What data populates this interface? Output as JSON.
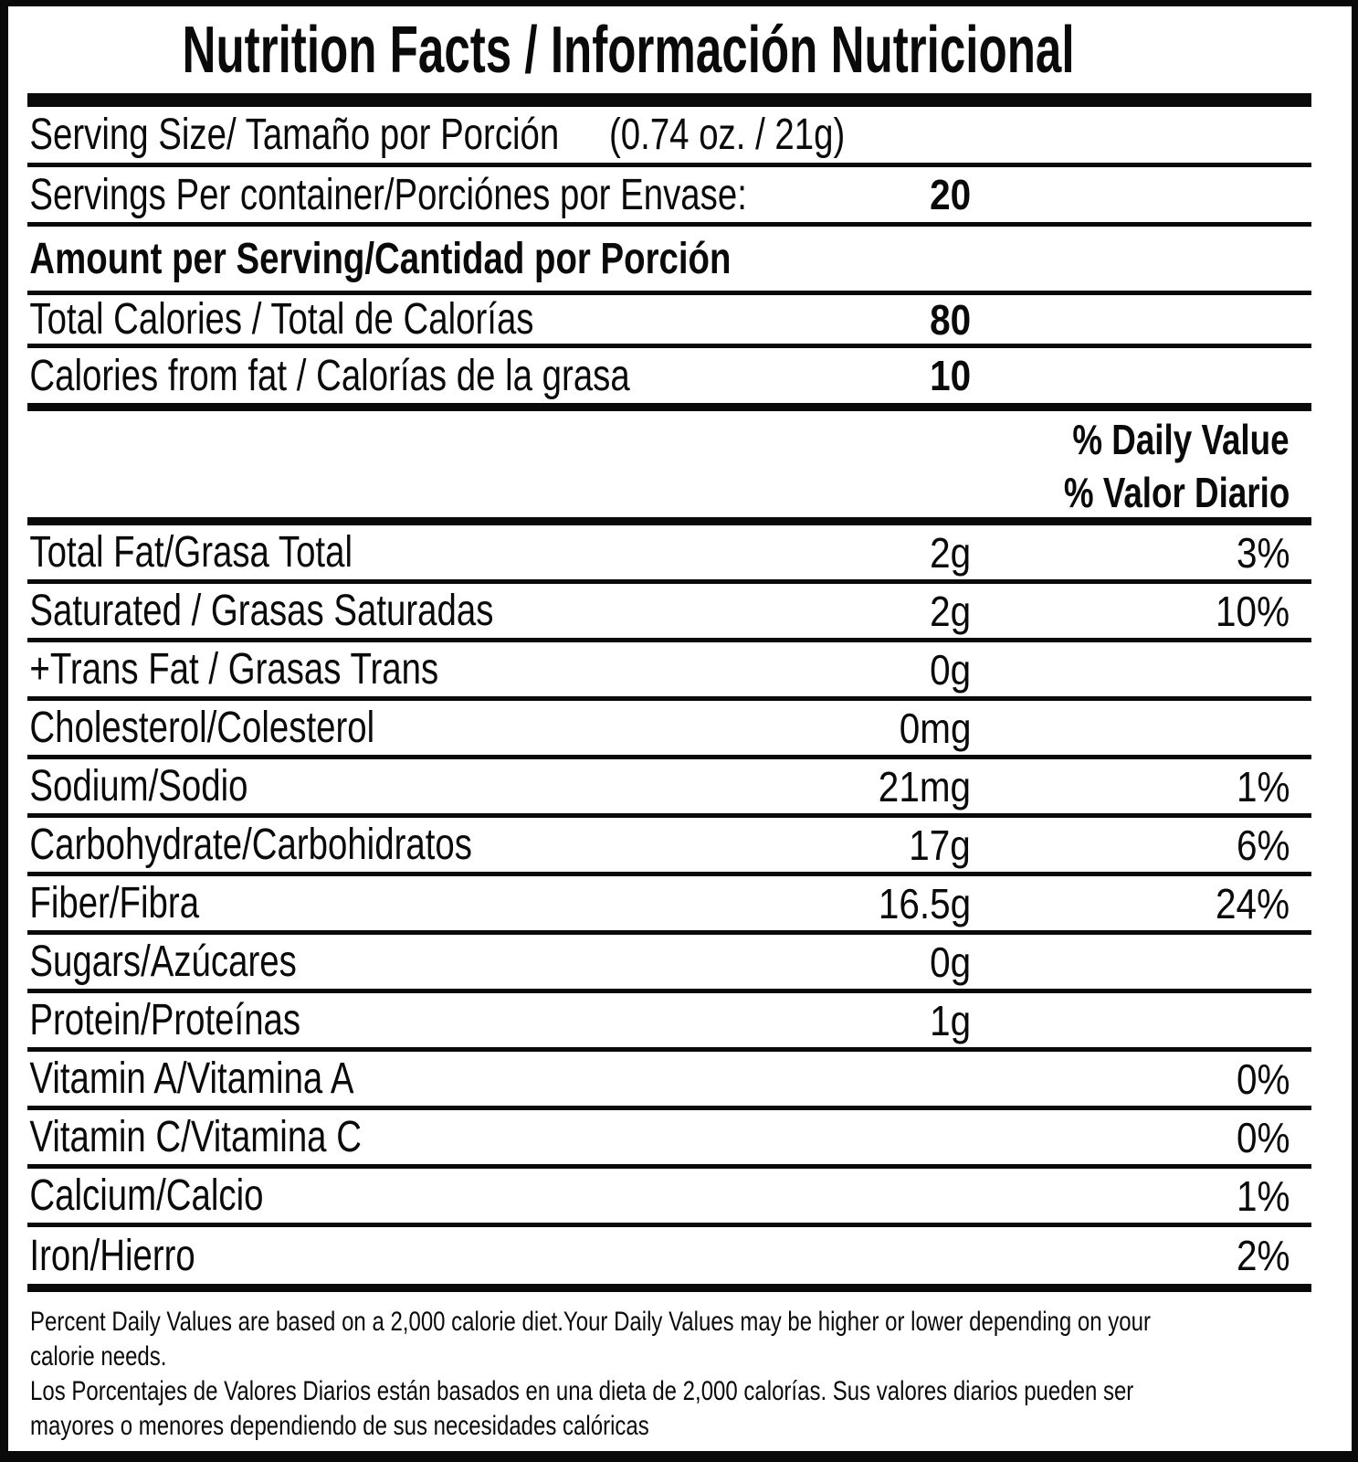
{
  "title": "Nutrition Facts / Información Nutricional",
  "serving": {
    "size_label": "Serving Size/ Tamaño por Porción",
    "size_value": "(0.74 oz. / 21g)",
    "per_container_label": "Servings Per container/Porciónes por Envase:",
    "per_container_value": "20"
  },
  "amount_header": "Amount per Serving/Cantidad por Porción",
  "calories": [
    {
      "label": "Total Calories / Total de Calorías",
      "value": "80"
    },
    {
      "label": "Calories from fat / Calorías de la grasa",
      "value": "10"
    }
  ],
  "daily_value_header": {
    "en": "% Daily Value",
    "es": "% Valor Diario"
  },
  "nutrients": [
    {
      "label": "Total Fat/Grasa Total",
      "amount": "2g",
      "dv": "3%"
    },
    {
      "label": "Saturated / Grasas Saturadas",
      "amount": "2g",
      "dv": "10%"
    },
    {
      "label": "+Trans Fat / Grasas Trans",
      "amount": "0g",
      "dv": ""
    },
    {
      "label": "Cholesterol/Colesterol",
      "amount": "0mg",
      "dv": ""
    },
    {
      "label": "Sodium/Sodio",
      "amount": "21mg",
      "dv": "1%"
    },
    {
      "label": "Carbohydrate/Carbohidratos",
      "amount": "17g",
      "dv": "6%"
    },
    {
      "label": "Fiber/Fibra",
      "amount": "16.5g",
      "dv": "24%"
    },
    {
      "label": "Sugars/Azúcares",
      "amount": "0g",
      "dv": ""
    },
    {
      "label": "Protein/Proteínas",
      "amount": "1g",
      "dv": ""
    },
    {
      "label": "Vitamin A/Vitamina A",
      "amount": "",
      "dv": "0%"
    },
    {
      "label": "Vitamin C/Vitamina C",
      "amount": "",
      "dv": "0%"
    },
    {
      "label": "Calcium/Calcio",
      "amount": "",
      "dv": "1%"
    },
    {
      "label": "Iron/Hierro",
      "amount": "",
      "dv": "2%"
    }
  ],
  "footnote": {
    "lines": [
      "Percent Daily Values are based on a 2,000 calorie diet.Your Daily Values may be higher or lower depending on your",
      "calorie needs.",
      "Los Porcentajes de Valores Diarios están basados en una dieta de 2,000 calorías. Sus valores diarios pueden ser",
      "mayores o menores dependiendo de sus necesidades calóricas"
    ]
  },
  "colors": {
    "ink": "#0a0a0a",
    "paper": "#ffffff"
  }
}
